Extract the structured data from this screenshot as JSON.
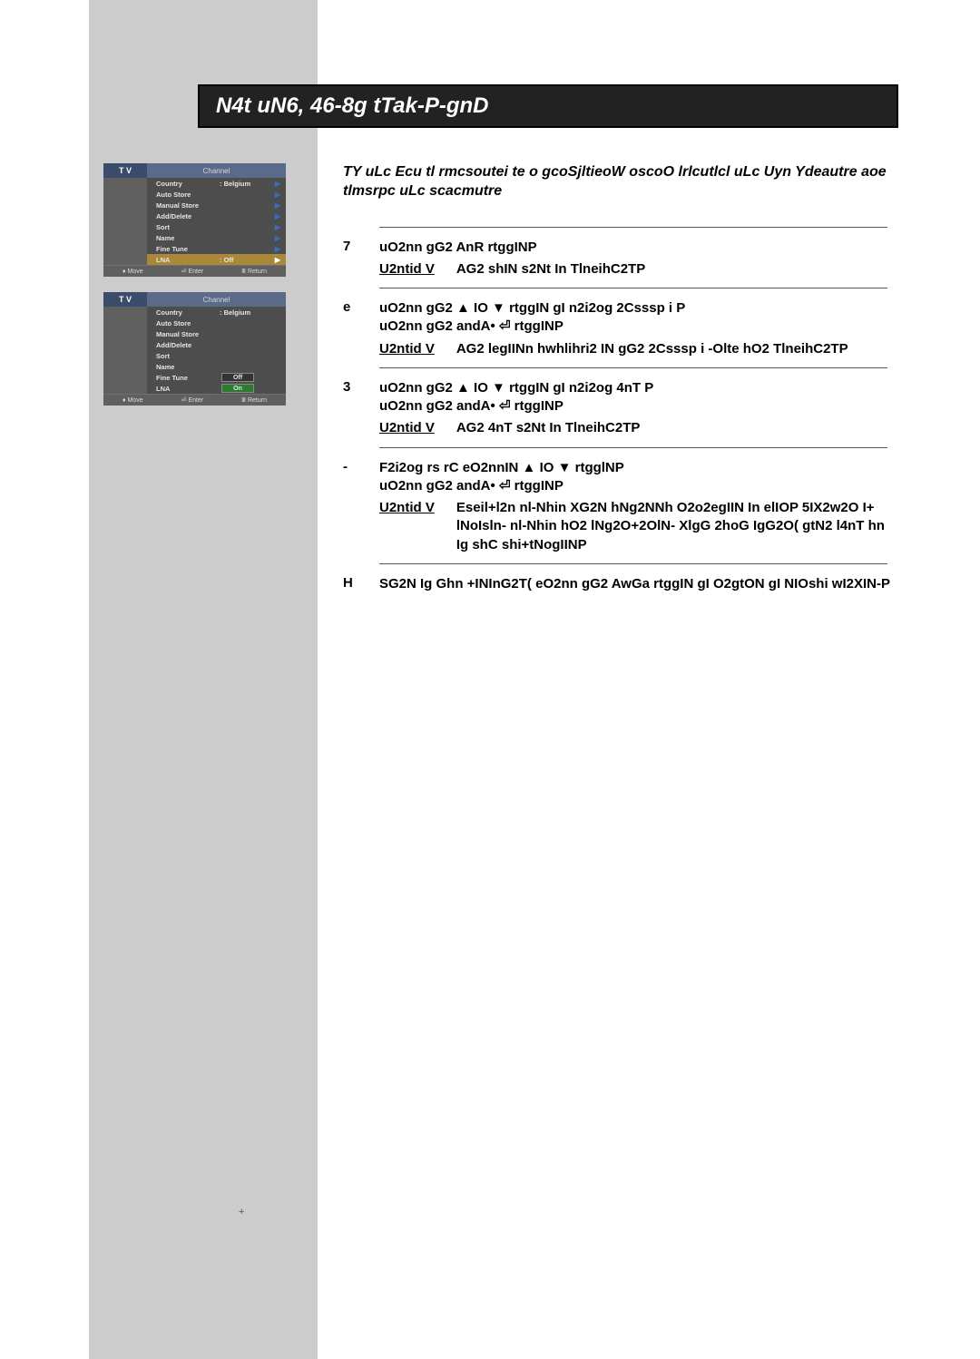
{
  "title": "N4t uN6, 46-8g tTak-P-gnD",
  "tv_label": "T V",
  "channel_label": "Channel",
  "osd1_rows": [
    {
      "label": "Country",
      "val": ":  Belgium",
      "arrow": true,
      "hl": false
    },
    {
      "label": "Auto Store",
      "val": "",
      "arrow": true,
      "hl": false
    },
    {
      "label": "Manual Store",
      "val": "",
      "arrow": true,
      "hl": false
    },
    {
      "label": "Add/Delete",
      "val": "",
      "arrow": true,
      "hl": false
    },
    {
      "label": "Sort",
      "val": "",
      "arrow": true,
      "hl": false
    },
    {
      "label": "Name",
      "val": "",
      "arrow": true,
      "hl": false
    },
    {
      "label": "Fine Tune",
      "val": "",
      "arrow": true,
      "hl": false
    },
    {
      "label": "LNA",
      "val": ":  Off",
      "arrow": true,
      "hl": true
    }
  ],
  "osd2_rows": [
    {
      "label": "Country",
      "val": ":  Belgium",
      "arrow": false,
      "hl": false
    },
    {
      "label": "Auto Store",
      "val": "",
      "arrow": false,
      "hl": false
    },
    {
      "label": "Manual Store",
      "val": "",
      "arrow": false,
      "hl": false
    },
    {
      "label": "Add/Delete",
      "val": "",
      "arrow": false,
      "hl": false
    },
    {
      "label": "Sort",
      "val": "",
      "arrow": false,
      "hl": false
    },
    {
      "label": "Name",
      "val": "",
      "arrow": false,
      "hl": false
    },
    {
      "label": "Fine Tune",
      "val": "",
      "arrow": false,
      "hl": false
    }
  ],
  "osd2_lna": {
    "label": "LNA",
    "off": "Off",
    "on": "On"
  },
  "foot": {
    "move": "Move",
    "enter": "Enter",
    "return": "Return"
  },
  "intro": "TY uLc Ecu tl rmcsoutei te o gcoSjltieoW oscoO lrlcutlcl uLc Uyn Ydeautre aoe tlmsrpc uLc scacmutre",
  "steps": [
    {
      "num": "7",
      "body": "uO2nn gG2 AnR  rtggINP",
      "result": "AG2 shIN s2Nt In TlneihC2TP"
    },
    {
      "num": "e",
      "body": "uO2nn gG2 ▲ IO ▼ rtggIN gI n2i2og 2Csssp i P\nuO2nn gG2 andA• ⏎ rtggINP",
      "result": "AG2 legIINn hwhlihri2 IN gG2 2Csssp i -Olte hO2 TlneihC2TP"
    },
    {
      "num": "3",
      "body": "uO2nn gG2 ▲ IO ▼ rtggIN gI n2i2og 4nT P\nuO2nn gG2 andA• ⏎ rtggINP",
      "result": "AG2 4nT s2Nt In TlneihC2TP"
    },
    {
      "num": "-",
      "body": "F2i2og rs rC eO2nnIN ▲ IO ▼ rtgglNP\nuO2nn gG2 andA• ⏎ rtggINP",
      "result": "Eseil+l2n nl-Nhin XG2N hNg2NNh O2o2egIIN In elIOP 5IX2w2O I+ lNoIsln- nl-Nhin hO2 lNg2O+2OlN- XlgG 2hoG IgG2O( gtN2 l4nT hn Ig shC shi+tNogIINP"
    },
    {
      "num": "H",
      "body": "SG2N Ig Ghn +INInG2T( eO2nn gG2 AwGa rtggIN gI O2gtON gI NIOshi wI2XIN-P",
      "result": null
    }
  ],
  "result_label": "U2ntid V",
  "page_corner": "+",
  "colors": {
    "sidebar": "#cccccc",
    "titlebar_bg": "#222222",
    "osd_head_left": "#3b4b6b",
    "osd_head_right": "#5a6a88",
    "osd_body": "#4d4d4d",
    "osd_hl": "#a8893a"
  }
}
